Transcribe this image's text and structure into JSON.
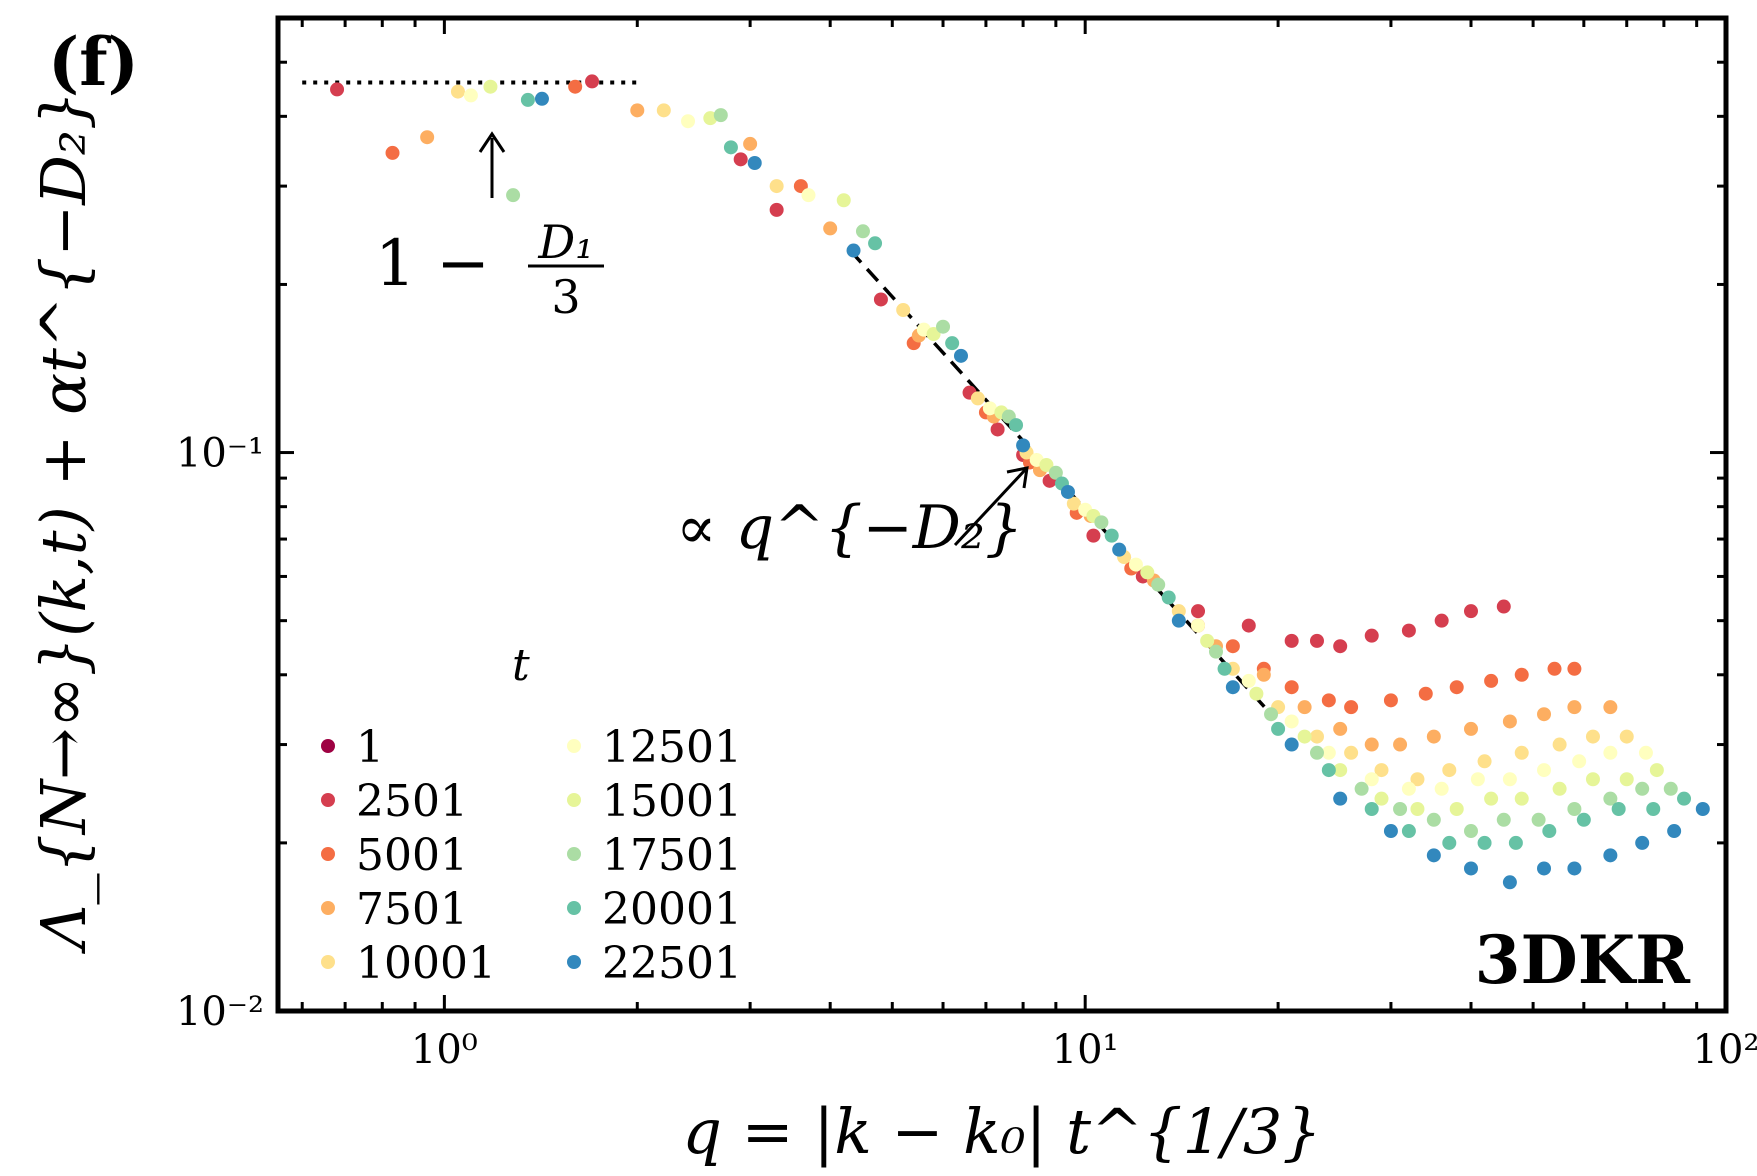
{
  "panel_label": "(f)",
  "colors": {
    "t1": "#9e0142",
    "t2501": "#d53e4f",
    "t5001": "#f46d43",
    "t7501": "#fdae61",
    "t10001": "#fee08b",
    "t12501": "#ffffbf",
    "t15001": "#e6f598",
    "t17501": "#abdda4",
    "t20001": "#66c2a5",
    "t22501": "#3288bd"
  },
  "chart_data": {
    "type": "scatter",
    "title": "",
    "xlabel": "q = |k − k₀| t^{1/3}",
    "ylabel": "Λ_{N→∞}(k,t) + αt^{−D₂}",
    "xscale": "log",
    "yscale": "log",
    "xlim": [
      0.55,
      100
    ],
    "ylim": [
      0.01,
      0.6
    ],
    "xticks": [
      {
        "value": 1,
        "label": "10⁰"
      },
      {
        "value": 10,
        "label": "10¹"
      },
      {
        "value": 100,
        "label": "10²"
      }
    ],
    "yticks": [
      {
        "value": 0.01,
        "label": "10⁻²"
      },
      {
        "value": 0.1,
        "label": "10⁻¹"
      }
    ],
    "legend_title": "t",
    "legend_position": "bottom-left",
    "series": [
      {
        "name": "1",
        "color": "#9e0142",
        "x": [],
        "y": []
      },
      {
        "name": "2501",
        "color": "#d53e4f",
        "x": [
          0.68,
          1.7,
          2.9,
          3.3,
          4.8,
          6.6,
          7.3,
          8.0,
          8.8,
          10.3,
          12.3,
          15,
          18,
          21,
          23,
          25,
          28,
          32,
          36,
          40,
          45
        ],
        "y": [
          0.447,
          0.462,
          0.335,
          0.272,
          0.188,
          0.128,
          0.11,
          0.099,
          0.089,
          0.071,
          0.06,
          0.052,
          0.049,
          0.046,
          0.046,
          0.045,
          0.047,
          0.048,
          0.05,
          0.052,
          0.053
        ]
      },
      {
        "name": "5001",
        "color": "#f46d43",
        "x": [
          0.83,
          1.6,
          3.6,
          5.4,
          7.0,
          8.2,
          9.7,
          11.8,
          15,
          17,
          19,
          21,
          24,
          26,
          30,
          34,
          38,
          43,
          48,
          54,
          58
        ],
        "y": [
          0.344,
          0.452,
          0.3,
          0.157,
          0.118,
          0.096,
          0.078,
          0.062,
          0.049,
          0.045,
          0.041,
          0.038,
          0.036,
          0.035,
          0.036,
          0.037,
          0.038,
          0.039,
          0.04,
          0.041,
          0.041
        ]
      },
      {
        "name": "7501",
        "color": "#fdae61",
        "x": [
          0.94,
          2.0,
          3.0,
          4.0,
          5.5,
          7.2,
          8.5,
          10.2,
          12.8,
          16,
          19,
          22,
          25,
          28,
          31,
          35,
          40,
          46,
          52,
          58,
          66
        ],
        "y": [
          0.367,
          0.41,
          0.357,
          0.252,
          0.162,
          0.116,
          0.093,
          0.077,
          0.059,
          0.045,
          0.04,
          0.035,
          0.032,
          0.03,
          0.03,
          0.031,
          0.032,
          0.033,
          0.034,
          0.035,
          0.035
        ]
      },
      {
        "name": "10001",
        "color": "#fee08b",
        "x": [
          1.05,
          2.2,
          3.3,
          5.2,
          6.8,
          8.1,
          9.6,
          11.5,
          14,
          17,
          20,
          23,
          26,
          29,
          33,
          37,
          42,
          48,
          55,
          62,
          70
        ],
        "y": [
          0.443,
          0.41,
          0.3,
          0.18,
          0.125,
          0.1,
          0.081,
          0.065,
          0.052,
          0.041,
          0.035,
          0.031,
          0.029,
          0.027,
          0.026,
          0.027,
          0.028,
          0.029,
          0.03,
          0.031,
          0.031
        ]
      },
      {
        "name": "12501",
        "color": "#ffffbf",
        "x": [
          1.1,
          2.4,
          3.7,
          5.6,
          7.1,
          8.4,
          10,
          12,
          15,
          18,
          21,
          24,
          28,
          32,
          36,
          41,
          46,
          52,
          59,
          66,
          75
        ],
        "y": [
          0.436,
          0.392,
          0.289,
          0.166,
          0.12,
          0.097,
          0.079,
          0.063,
          0.049,
          0.039,
          0.033,
          0.029,
          0.026,
          0.025,
          0.025,
          0.026,
          0.026,
          0.027,
          0.028,
          0.029,
          0.029
        ]
      },
      {
        "name": "15001",
        "color": "#e6f598",
        "x": [
          1.18,
          2.6,
          4.2,
          5.8,
          7.4,
          8.7,
          10.3,
          12.5,
          15.5,
          18.5,
          22,
          25,
          29,
          33,
          38,
          43,
          48,
          55,
          62,
          70,
          78
        ],
        "y": [
          0.452,
          0.397,
          0.283,
          0.163,
          0.118,
          0.095,
          0.077,
          0.061,
          0.046,
          0.037,
          0.031,
          0.027,
          0.024,
          0.023,
          0.023,
          0.024,
          0.024,
          0.025,
          0.026,
          0.026,
          0.027
        ]
      },
      {
        "name": "17501",
        "color": "#abdda4",
        "x": [
          1.28,
          2.7,
          4.5,
          6.0,
          7.6,
          9.0,
          10.6,
          13,
          16,
          19.5,
          23,
          27,
          31,
          35,
          40,
          45,
          51,
          58,
          66,
          74,
          82
        ],
        "y": [
          0.289,
          0.402,
          0.249,
          0.168,
          0.116,
          0.092,
          0.075,
          0.058,
          0.044,
          0.034,
          0.029,
          0.025,
          0.023,
          0.022,
          0.021,
          0.022,
          0.022,
          0.023,
          0.024,
          0.025,
          0.025
        ]
      },
      {
        "name": "20001",
        "color": "#66c2a5",
        "x": [
          1.35,
          2.8,
          4.7,
          6.2,
          7.8,
          9.2,
          11,
          13.5,
          16.5,
          20,
          24,
          28,
          32,
          37,
          42,
          47,
          53,
          60,
          68,
          77,
          86
        ],
        "y": [
          0.428,
          0.352,
          0.237,
          0.157,
          0.112,
          0.088,
          0.071,
          0.055,
          0.041,
          0.032,
          0.027,
          0.023,
          0.021,
          0.02,
          0.02,
          0.02,
          0.021,
          0.022,
          0.023,
          0.023,
          0.024
        ]
      },
      {
        "name": "22501",
        "color": "#3288bd",
        "x": [
          1.42,
          3.05,
          4.35,
          6.4,
          8.0,
          9.4,
          11.3,
          14,
          17,
          21,
          25,
          30,
          35,
          40,
          46,
          52,
          58,
          66,
          74,
          83,
          92
        ],
        "y": [
          0.43,
          0.33,
          0.23,
          0.149,
          0.103,
          0.085,
          0.067,
          0.05,
          0.038,
          0.03,
          0.024,
          0.021,
          0.019,
          0.018,
          0.017,
          0.018,
          0.018,
          0.019,
          0.02,
          0.021,
          0.023
        ]
      }
    ],
    "reference_lines": [
      {
        "name": "plateau",
        "style": "dotted",
        "x": [
          0.6,
          2.0
        ],
        "y": [
          0.46,
          0.46
        ]
      },
      {
        "name": "power-law",
        "style": "dashed",
        "x": [
          4.3,
          19.5
        ],
        "y": [
          0.23,
          0.034
        ]
      }
    ],
    "annotations": {
      "plateau_label": {
        "lead": "1 −",
        "numerator": "D₁",
        "denominator": "3"
      },
      "power_law_label": "∝ q^{−D₂}",
      "model_label": "3DKR"
    }
  }
}
